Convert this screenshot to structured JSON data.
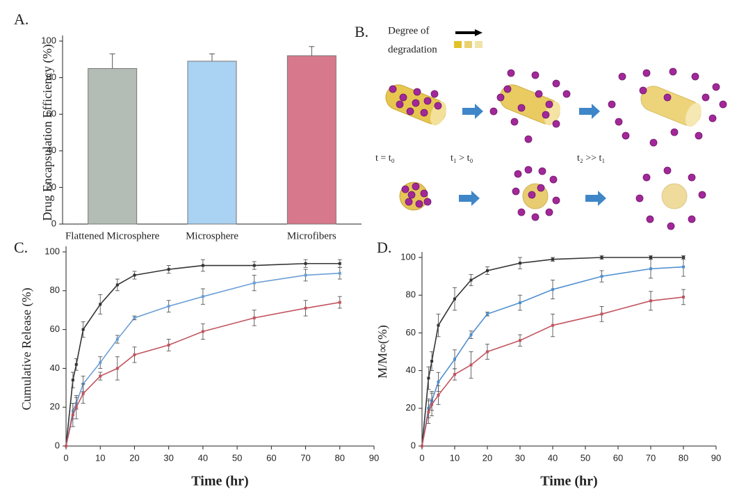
{
  "chart_data": [
    {
      "type": "bar",
      "panel": "A.",
      "ylabel": "Drug Encapsulation Efficiency (%)",
      "categories": [
        "Flattened Microsphere",
        "Microsphere",
        "Microfibers"
      ],
      "values": [
        85,
        89,
        92
      ],
      "errors": [
        8,
        4,
        5
      ],
      "colors": [
        "#b4bcb6",
        "#aad2f2",
        "#d8788c"
      ],
      "ylim": [
        0,
        100
      ],
      "yticks": [
        0,
        20,
        40,
        60,
        80,
        100
      ]
    },
    {
      "type": "line",
      "panel": "C.",
      "xlabel": "Time (hr)",
      "ylabel": "Cumulative Release (%)",
      "x": [
        0,
        2,
        3,
        5,
        10,
        15,
        20,
        30,
        40,
        55,
        70,
        80
      ],
      "series": [
        {
          "color": "#333333",
          "values": [
            0,
            34,
            42,
            60,
            73,
            83,
            88,
            91,
            93,
            93,
            94,
            94
          ],
          "errors": [
            0,
            4,
            3,
            4,
            5,
            3,
            2,
            2,
            3,
            2,
            2,
            2
          ]
        },
        {
          "color": "#6b9fd6",
          "values": [
            0,
            18,
            22,
            32,
            43,
            55,
            66,
            72,
            77,
            84,
            88,
            89
          ],
          "errors": [
            0,
            4,
            3,
            4,
            3,
            2,
            1,
            3,
            4,
            4,
            3,
            3
          ]
        },
        {
          "color": "#c2545f",
          "values": [
            0,
            16,
            20,
            27,
            36,
            40,
            47,
            52,
            59,
            66,
            71,
            74
          ],
          "errors": [
            0,
            6,
            6,
            5,
            2,
            6,
            4,
            3,
            4,
            4,
            4,
            3
          ]
        }
      ],
      "xlim": [
        0,
        90
      ],
      "xticks": [
        0,
        10,
        20,
        30,
        40,
        50,
        60,
        70,
        80,
        90
      ],
      "ylim": [
        0,
        100
      ],
      "yticks": [
        0,
        20,
        40,
        60,
        80,
        100
      ]
    },
    {
      "type": "line",
      "panel": "D.",
      "xlabel": "Time (hr)",
      "ylabel": "M/M∞(%)",
      "x": [
        0,
        2,
        3,
        5,
        10,
        15,
        20,
        30,
        40,
        55,
        70,
        80
      ],
      "series": [
        {
          "color": "#333333",
          "values": [
            0,
            36,
            45,
            64,
            78,
            88,
            93,
            97,
            99,
            100,
            100,
            100
          ],
          "errors": [
            0,
            6,
            5,
            6,
            6,
            3,
            2,
            3,
            1,
            1,
            1,
            1
          ]
        },
        {
          "color": "#4f8fd0",
          "values": [
            0,
            20,
            24,
            34,
            46,
            59,
            70,
            76,
            83,
            90,
            94,
            95
          ],
          "errors": [
            0,
            5,
            5,
            5,
            5,
            2,
            1,
            4,
            5,
            3,
            5,
            5
          ]
        },
        {
          "color": "#c2545f",
          "values": [
            0,
            18,
            22,
            27,
            38,
            43,
            50,
            56,
            64,
            70,
            77,
            79
          ],
          "errors": [
            0,
            6,
            6,
            5,
            3,
            7,
            4,
            3,
            6,
            4,
            5,
            4
          ]
        }
      ],
      "xlim": [
        0,
        90
      ],
      "xticks": [
        0,
        10,
        20,
        30,
        40,
        50,
        60,
        70,
        80,
        90
      ],
      "ylim": [
        0,
        100
      ],
      "yticks": [
        0,
        20,
        40,
        60,
        80,
        100
      ]
    }
  ],
  "diagram": {
    "panel": "B.",
    "legend": [
      "Degree of",
      "degradation"
    ],
    "times": [
      "t = t₀",
      "t₁ > t₀",
      "t₂ >> t₁"
    ]
  }
}
